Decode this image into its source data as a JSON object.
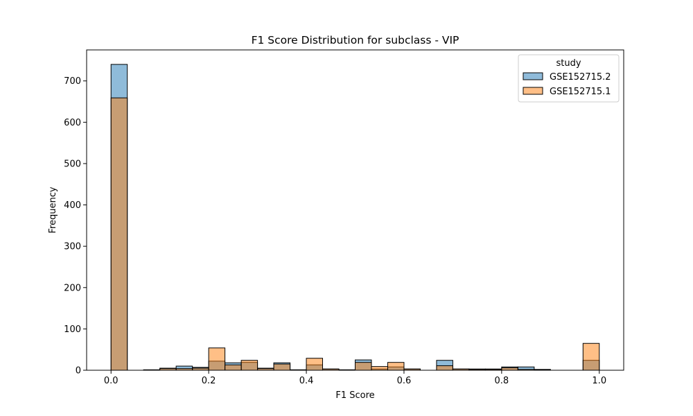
{
  "chart_data": {
    "type": "bar",
    "title": "F1 Score Distribution for subclass - VIP",
    "xlabel": "F1 Score",
    "ylabel": "Frequency",
    "xlim": [
      -0.05,
      1.05
    ],
    "ylim": [
      0,
      775
    ],
    "xticks": [
      0.0,
      0.2,
      0.4,
      0.6,
      0.8,
      1.0
    ],
    "xtick_labels": [
      "0.0",
      "0.2",
      "0.4",
      "0.6",
      "0.8",
      "1.0"
    ],
    "yticks": [
      0,
      100,
      200,
      300,
      400,
      500,
      600,
      700
    ],
    "ytick_labels": [
      "0",
      "100",
      "200",
      "300",
      "400",
      "500",
      "600",
      "700"
    ],
    "grid": false,
    "bin_width": 0.0333,
    "bin_edges": [
      0.0,
      0.0333,
      0.0667,
      0.1,
      0.1333,
      0.1667,
      0.2,
      0.2333,
      0.2667,
      0.3,
      0.3333,
      0.3667,
      0.4,
      0.4333,
      0.4667,
      0.5,
      0.5333,
      0.5667,
      0.6,
      0.6333,
      0.6667,
      0.7,
      0.7333,
      0.7667,
      0.8,
      0.8333,
      0.8667,
      0.9,
      0.9333,
      0.9667,
      1.0
    ],
    "legend": {
      "title": "study",
      "placement": "top-right",
      "entries": [
        "GSE152715.2",
        "GSE152715.1"
      ]
    },
    "series": [
      {
        "name": "GSE152715.2",
        "color": "#1f77b4",
        "values": [
          740,
          0,
          1,
          5,
          10,
          7,
          22,
          18,
          19,
          5,
          18,
          1,
          13,
          3,
          1,
          25,
          3,
          8,
          3,
          0,
          24,
          3,
          3,
          3,
          8,
          8,
          2,
          0,
          0,
          24
        ]
      },
      {
        "name": "GSE152715.1",
        "color": "#ff7f0e",
        "values": [
          659,
          0,
          1,
          4,
          4,
          5,
          54,
          13,
          24,
          4,
          15,
          1,
          29,
          3,
          1,
          19,
          9,
          19,
          3,
          0,
          11,
          3,
          2,
          2,
          6,
          2,
          1,
          0,
          0,
          65
        ]
      }
    ]
  }
}
